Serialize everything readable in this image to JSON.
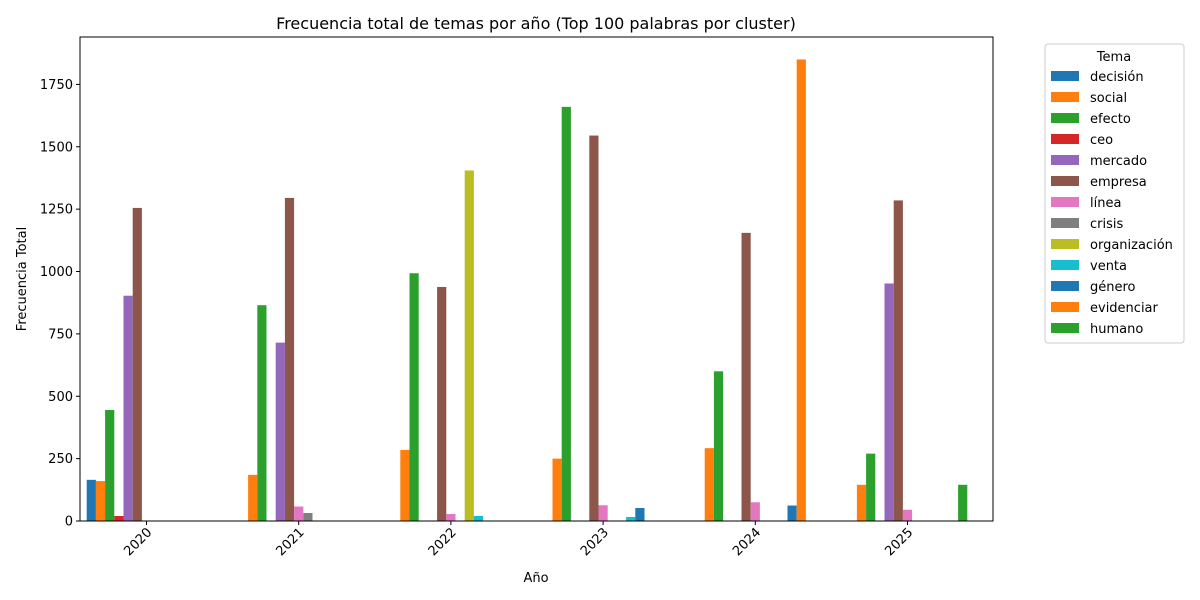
{
  "chart_data": {
    "type": "bar",
    "title": "Frecuencia total de temas por año (Top 100 palabras por cluster)",
    "xlabel": "Año",
    "ylabel": "Frecuencia Total",
    "categories": [
      "2020",
      "2021",
      "2022",
      "2023",
      "2024",
      "2025"
    ],
    "ylim": [
      0,
      1940
    ],
    "yticks": [
      0,
      250,
      500,
      750,
      1000,
      1250,
      1500,
      1750
    ],
    "grid": false,
    "legend_title": "Tema",
    "legend_position": "outside-right",
    "series": [
      {
        "name": "decisión",
        "color": "#1f77b4",
        "values": [
          165,
          0,
          0,
          0,
          0,
          0
        ]
      },
      {
        "name": "social",
        "color": "#ff7f0e",
        "values": [
          160,
          185,
          285,
          250,
          292,
          145
        ]
      },
      {
        "name": "efecto",
        "color": "#2ca02c",
        "values": [
          445,
          865,
          993,
          1660,
          600,
          270
        ]
      },
      {
        "name": "ceo",
        "color": "#d62728",
        "values": [
          20,
          0,
          0,
          0,
          0,
          0
        ]
      },
      {
        "name": "mercado",
        "color": "#9467bd",
        "values": [
          903,
          715,
          0,
          0,
          0,
          952
        ]
      },
      {
        "name": "empresa",
        "color": "#8c564b",
        "values": [
          1255,
          1295,
          938,
          1545,
          1155,
          1285
        ]
      },
      {
        "name": "línea",
        "color": "#e377c2",
        "values": [
          0,
          58,
          28,
          63,
          75,
          45
        ]
      },
      {
        "name": "crisis",
        "color": "#7f7f7f",
        "values": [
          0,
          32,
          0,
          0,
          0,
          0
        ]
      },
      {
        "name": "organización",
        "color": "#bcbd22",
        "values": [
          0,
          0,
          1405,
          0,
          0,
          0
        ]
      },
      {
        "name": "venta",
        "color": "#17becf",
        "values": [
          0,
          0,
          20,
          16,
          0,
          0
        ]
      },
      {
        "name": "género",
        "color": "#1f77b4",
        "values": [
          0,
          0,
          0,
          52,
          62,
          0
        ]
      },
      {
        "name": "evidenciar",
        "color": "#ff7f0e",
        "values": [
          0,
          0,
          0,
          0,
          1850,
          0
        ]
      },
      {
        "name": "humano",
        "color": "#2ca02c",
        "values": [
          0,
          0,
          0,
          0,
          0,
          145
        ]
      }
    ]
  }
}
